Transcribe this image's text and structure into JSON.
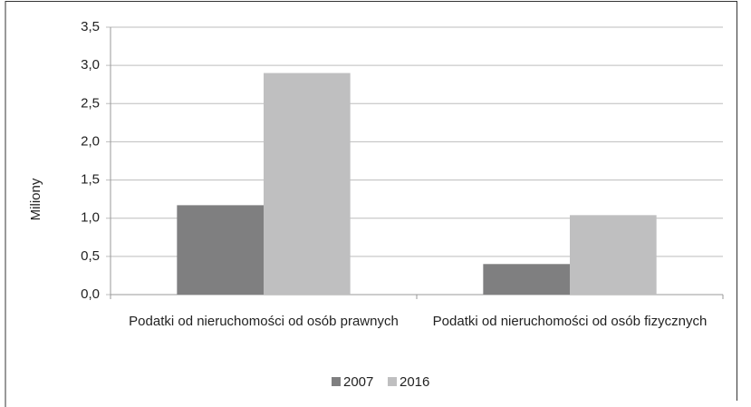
{
  "chart_data": {
    "type": "bar",
    "y_label": "Miliony",
    "categories": [
      "Podatki od nieruchomości od osób prawnych",
      "Podatki od nieruchomości od osób fizycznych"
    ],
    "series": [
      {
        "name": "2007",
        "color": "#7f7f80",
        "values": [
          1.17,
          0.4
        ]
      },
      {
        "name": "2016",
        "color": "#bfbfc0",
        "values": [
          2.9,
          1.04
        ]
      }
    ],
    "ylim": [
      0,
      3.5
    ],
    "yticks": [
      {
        "value": 0,
        "label": "0,0"
      },
      {
        "value": 0.5,
        "label": "0,5"
      },
      {
        "value": 1,
        "label": "1,0"
      },
      {
        "value": 1.5,
        "label": "1,5"
      },
      {
        "value": 2,
        "label": "2,0"
      },
      {
        "value": 2.5,
        "label": "2,5"
      },
      {
        "value": 3,
        "label": "3,0"
      },
      {
        "value": 3.5,
        "label": "3,5"
      }
    ],
    "grid": true,
    "legend": "bottom"
  }
}
